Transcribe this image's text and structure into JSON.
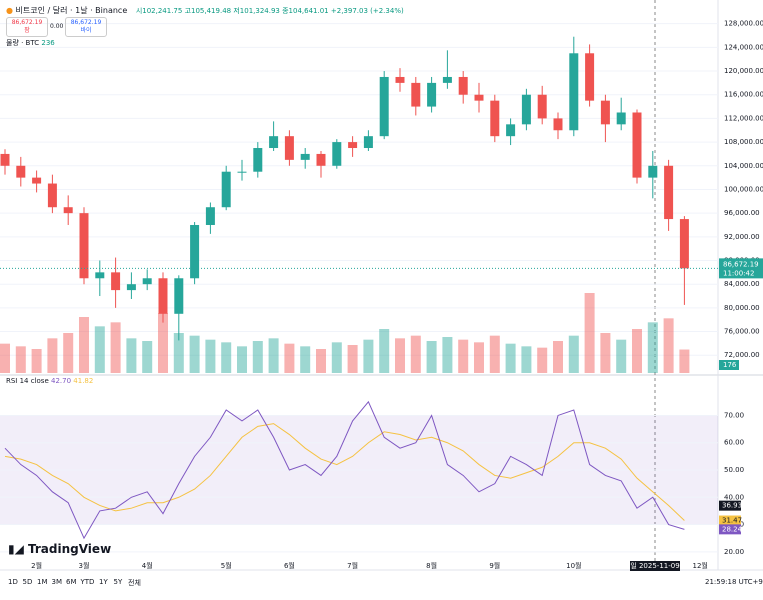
{
  "header": {
    "symbol": "비트코인 / 달러 · 1날 · Binance",
    "open": "시102,241.75",
    "high": "고105,419.48",
    "low": "저101,324.93",
    "close": "종104,641.01",
    "change": "+2,397.03 (+2.34%)",
    "sell_price": "86,672.19",
    "sell_label": "팜",
    "spread": "0.00",
    "buy_price": "86,672.19",
    "buy_label": "바이"
  },
  "volume_header": {
    "label": "물량 · BTC",
    "value": "236"
  },
  "rsi_header": {
    "label": "RSI 14 close",
    "value": "42.70",
    "ma": "41.82"
  },
  "chart_data": [
    {
      "type": "candlestick",
      "up_color": "#26a69a",
      "down_color": "#ef5350",
      "categories": [
        null,
        null,
        "2월",
        null,
        null,
        "3월",
        null,
        null,
        null,
        "4월",
        null,
        null,
        null,
        null,
        "5월",
        null,
        null,
        null,
        "6월",
        null,
        null,
        null,
        "7월",
        null,
        null,
        null,
        null,
        "8월",
        null,
        null,
        null,
        "9월",
        null,
        null,
        null,
        null,
        "10월",
        null,
        null,
        null,
        null,
        null,
        null,
        null,
        "12월"
      ],
      "open": [
        106000,
        104000,
        102000,
        101000,
        97000,
        96000,
        85000,
        86000,
        83000,
        84000,
        85000,
        79000,
        85000,
        94000,
        97000,
        103000,
        103000,
        107000,
        109000,
        105000,
        106000,
        104000,
        108000,
        107000,
        109000,
        119000,
        118000,
        114000,
        118000,
        119000,
        116000,
        115000,
        109000,
        111000,
        116000,
        112000,
        110000,
        123000,
        115000,
        111000,
        113000,
        102000,
        104000,
        95000,
        null
      ],
      "high": [
        106800,
        105500,
        103200,
        102500,
        99000,
        97000,
        88000,
        88500,
        86000,
        86500,
        86000,
        85500,
        94500,
        97800,
        104000,
        105000,
        108000,
        111500,
        110000,
        107000,
        106500,
        108500,
        109000,
        110000,
        120000,
        120500,
        119000,
        119000,
        123500,
        120000,
        118000,
        116000,
        112000,
        117000,
        117500,
        113000,
        125800,
        124500,
        116000,
        115500,
        113500,
        106500,
        105000,
        95500,
        null
      ],
      "low": [
        102500,
        100500,
        99500,
        96000,
        94000,
        84000,
        82000,
        80000,
        81500,
        83000,
        77500,
        74500,
        84000,
        92500,
        96500,
        101500,
        102000,
        106500,
        104000,
        103500,
        102000,
        103500,
        105500,
        106500,
        108500,
        116500,
        112500,
        113000,
        117000,
        114500,
        113000,
        108000,
        107500,
        110000,
        111000,
        108500,
        109000,
        114000,
        108000,
        110000,
        101000,
        98500,
        93000,
        80500,
        null
      ],
      "close": [
        104000,
        102000,
        101000,
        97000,
        96000,
        85000,
        86000,
        83000,
        84000,
        85000,
        79000,
        85000,
        94000,
        97000,
        103000,
        103000,
        107000,
        109000,
        105000,
        106000,
        104000,
        108000,
        107000,
        109000,
        119000,
        118000,
        114000,
        118000,
        119000,
        116000,
        115000,
        109000,
        111000,
        116000,
        112000,
        110000,
        123000,
        115000,
        111000,
        113000,
        102000,
        104000,
        95000,
        86672.19,
        null
      ],
      "volume": [
        220,
        200,
        180,
        260,
        300,
        420,
        350,
        380,
        260,
        240,
        450,
        300,
        280,
        250,
        230,
        200,
        240,
        260,
        220,
        200,
        180,
        230,
        210,
        250,
        330,
        260,
        280,
        240,
        270,
        250,
        230,
        280,
        220,
        200,
        190,
        240,
        280,
        600,
        300,
        250,
        330,
        380,
        410,
        176,
        null
      ],
      "ylim": [
        69000,
        132000
      ],
      "yticks": [
        {
          "value": 72000,
          "label": "72,000.00"
        },
        {
          "value": 76000,
          "label": "76,000.00"
        },
        {
          "value": 80000,
          "label": "80,000.00"
        },
        {
          "value": 84000,
          "label": "84,000.00"
        },
        {
          "value": 88000,
          "label": "88,000.00"
        },
        {
          "value": 92000,
          "label": "92,000.00"
        },
        {
          "value": 96000,
          "label": "96,000.00"
        },
        {
          "value": 100000,
          "label": "100,000.00"
        },
        {
          "value": 104000,
          "label": "104,000.00"
        },
        {
          "value": 108000,
          "label": "108,000.00"
        },
        {
          "value": 112000,
          "label": "112,000.00"
        },
        {
          "value": 116000,
          "label": "116,000.00"
        },
        {
          "value": 120000,
          "label": "120,000.00"
        },
        {
          "value": 124000,
          "label": "124,000.00"
        },
        {
          "value": 128000,
          "label": "128,000.00"
        }
      ],
      "last_price_label": "86,672.19",
      "countdown": "11:00:42",
      "volume_last_label": "176"
    },
    {
      "type": "line",
      "series": [
        {
          "color": "#7e57c2",
          "values": [
            58,
            52,
            48,
            42,
            38,
            25,
            35,
            36,
            40,
            42,
            34,
            45,
            55,
            62,
            72,
            68,
            72,
            62,
            50,
            52,
            48,
            55,
            68,
            75,
            62,
            58,
            60,
            70,
            52,
            48,
            42,
            45,
            55,
            52,
            48,
            70,
            72,
            52,
            48,
            46,
            36,
            40,
            30,
            28.24,
            null
          ]
        },
        {
          "color": "#f5c242",
          "values": [
            55,
            54,
            52,
            48,
            45,
            40,
            37,
            35,
            36,
            38,
            38,
            40,
            43,
            48,
            55,
            62,
            66,
            67,
            63,
            58,
            54,
            52,
            55,
            60,
            64,
            63,
            61,
            62,
            60,
            57,
            52,
            48,
            47,
            49,
            51,
            55,
            60,
            60,
            58,
            54,
            47,
            42,
            37,
            31.47,
            null
          ]
        }
      ],
      "ylim": [
        17,
        83
      ],
      "yticks": [
        {
          "value": 20,
          "label": "20.00"
        },
        {
          "value": 30,
          "label": "30.00"
        },
        {
          "value": 40,
          "label": "40.00"
        },
        {
          "value": 50,
          "label": "50.00"
        },
        {
          "value": 60,
          "label": "60.00"
        },
        {
          "value": 70,
          "label": "70.00"
        }
      ],
      "band": [
        30,
        70
      ],
      "crosshair_label": "36.93",
      "ma_label": "31.47",
      "last_label": "28.24",
      "date_label": "일 2025-11-09"
    }
  ],
  "toolbar": {
    "ranges": [
      "1D",
      "5D",
      "1M",
      "3M",
      "6M",
      "YTD",
      "1Y",
      "5Y",
      "전체"
    ],
    "clock": "21:59:18 UTC+9"
  },
  "logo": "TradingView"
}
